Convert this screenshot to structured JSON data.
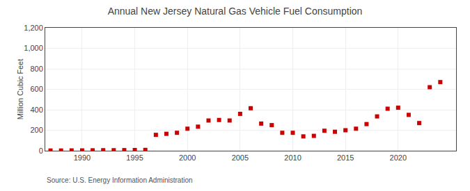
{
  "chart_data": {
    "type": "scatter",
    "title": "Annual New Jersey Natural Gas Vehicle Fuel Consumption",
    "ylabel": "Million Cubic Feet",
    "annotations": [
      "Source: U.S. Energy Information Administration"
    ],
    "x": [
      1987,
      1988,
      1989,
      1990,
      1991,
      1992,
      1993,
      1994,
      1995,
      1996,
      1997,
      1998,
      1999,
      2000,
      2001,
      2002,
      2003,
      2004,
      2005,
      2006,
      2007,
      2008,
      2009,
      2010,
      2011,
      2012,
      2013,
      2014,
      2015,
      2016,
      2017,
      2018,
      2019,
      2020,
      2021,
      2022,
      2023,
      2024
    ],
    "values": [
      2,
      2,
      3,
      3,
      4,
      5,
      5,
      6,
      7,
      8,
      155,
      165,
      175,
      215,
      235,
      295,
      300,
      295,
      360,
      415,
      265,
      250,
      175,
      175,
      140,
      145,
      195,
      185,
      200,
      215,
      260,
      335,
      410,
      420,
      350,
      270,
      620,
      670
    ],
    "color": "#cc0000",
    "marker": "square",
    "xlim": [
      1986.5,
      2025.5
    ],
    "xticks": [
      1990,
      1995,
      2000,
      2005,
      2010,
      2015,
      2020
    ],
    "ylim": [
      0,
      1200
    ],
    "yticks": [
      0,
      200,
      400,
      600,
      800,
      {
        "value": 1000,
        "label": "1,000"
      },
      {
        "value": 1200,
        "label": "1,200"
      }
    ],
    "grid": true
  }
}
